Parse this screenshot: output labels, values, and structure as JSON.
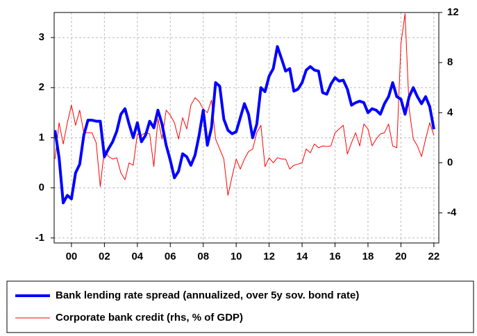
{
  "chart_data": {
    "type": "line",
    "x": [
      -1,
      -0.75,
      -0.5,
      -0.25,
      0,
      0.25,
      0.5,
      0.75,
      1,
      1.25,
      1.5,
      1.75,
      2,
      2.25,
      2.5,
      2.75,
      3,
      3.25,
      3.5,
      3.75,
      4,
      4.25,
      4.5,
      4.75,
      5,
      5.25,
      5.5,
      5.75,
      6,
      6.25,
      6.5,
      6.75,
      7,
      7.25,
      7.5,
      7.75,
      8,
      8.25,
      8.5,
      8.75,
      9,
      9.25,
      9.5,
      9.75,
      10,
      10.25,
      10.5,
      10.75,
      11,
      11.25,
      11.5,
      11.75,
      12,
      12.25,
      12.5,
      12.75,
      13,
      13.25,
      13.5,
      13.75,
      14,
      14.25,
      14.5,
      14.75,
      15,
      15.25,
      15.5,
      15.75,
      16,
      16.25,
      16.5,
      16.75,
      17,
      17.25,
      17.5,
      17.75,
      18,
      18.25,
      18.5,
      18.75,
      19,
      19.25,
      19.5,
      19.75,
      20,
      20.25,
      20.5,
      20.75,
      21,
      21.25,
      21.5,
      21.75,
      22
    ],
    "series": [
      {
        "name": "Bank lending rate spread (annualized, over 5y sov. bond rate)",
        "color": "#0000ff",
        "axis": "y",
        "values": [
          1.15,
          0.6,
          -0.3,
          -0.15,
          -0.22,
          0.3,
          0.47,
          1.05,
          1.35,
          1.35,
          1.33,
          1.33,
          0.62,
          0.78,
          0.92,
          1.13,
          1.47,
          1.58,
          1.27,
          1.0,
          1.3,
          0.92,
          1.05,
          1.33,
          1.2,
          1.55,
          1.27,
          0.85,
          0.55,
          0.2,
          0.33,
          0.68,
          0.62,
          0.45,
          0.65,
          1.05,
          1.55,
          0.85,
          1.2,
          2.1,
          2.03,
          1.37,
          1.15,
          1.08,
          1.12,
          1.4,
          1.68,
          1.47,
          1.0,
          1.27,
          2.0,
          1.92,
          2.23,
          2.38,
          2.82,
          2.58,
          2.33,
          2.38,
          1.93,
          1.97,
          2.1,
          2.35,
          2.42,
          2.35,
          2.33,
          1.9,
          1.87,
          2.07,
          2.2,
          2.13,
          2.15,
          1.97,
          1.65,
          1.7,
          1.73,
          1.7,
          1.5,
          1.58,
          1.55,
          1.47,
          1.68,
          1.82,
          2.1,
          1.82,
          1.77,
          1.47,
          1.82,
          2.0,
          1.82,
          1.68,
          1.82,
          1.62,
          1.17
        ]
      },
      {
        "name": "Corporate bank credit (rhs, % of GDP)",
        "color": "#ff0000",
        "axis": "y2",
        "values": [
          0.3,
          3.2,
          1.5,
          3.2,
          4.6,
          3.0,
          4.2,
          2.4,
          2.4,
          2.4,
          1.6,
          -1.9,
          1.1,
          0.5,
          0.3,
          0.4,
          -0.8,
          -1.35,
          0,
          -0.2,
          2.3,
          2.2,
          2.4,
          2.3,
          -0.3,
          3.5,
          1.9,
          4.2,
          3.8,
          3.2,
          1.9,
          3.6,
          2.7,
          4.6,
          5.2,
          4.9,
          4.3,
          4.0,
          5.0,
          1.9,
          1.1,
          0.3,
          -2.6,
          -1.1,
          0.3,
          -0.5,
          0.3,
          0.9,
          1.1,
          2.4,
          3.0,
          -0.3,
          0.4,
          0,
          0.4,
          0.3,
          0.3,
          -0.5,
          -0.2,
          -0.1,
          0,
          1.1,
          0.8,
          1.5,
          1.2,
          1.35,
          1.3,
          1.35,
          2.4,
          2.7,
          3.0,
          0.7,
          1.6,
          2.4,
          1.35,
          3.1,
          2.7,
          1.35,
          1.9,
          2.3,
          2.4,
          3.1,
          1.35,
          1.2,
          9.5,
          11.9,
          4.3,
          1.9,
          1.35,
          0.5,
          1.9,
          3.2,
          2.2
        ]
      }
    ],
    "xlim": [
      -1.05,
      22.3
    ],
    "xticks": [
      {
        "value": 0,
        "label": "00"
      },
      {
        "value": 2,
        "label": "02"
      },
      {
        "value": 4,
        "label": "04"
      },
      {
        "value": 6,
        "label": "06"
      },
      {
        "value": 8,
        "label": "08"
      },
      10,
      12,
      14,
      16,
      18,
      20,
      22
    ],
    "ylim": [
      -1.1,
      3.5
    ],
    "yticks": [
      -1,
      0,
      1,
      2,
      3
    ],
    "y2lim": [
      -6.4,
      12
    ],
    "y2ticks": [
      -4,
      0,
      4,
      8,
      12
    ],
    "grid": true,
    "legend": "bottom"
  }
}
